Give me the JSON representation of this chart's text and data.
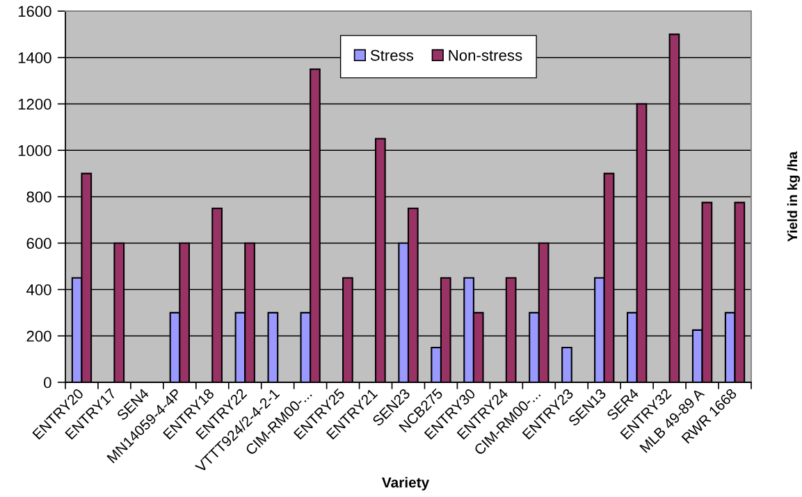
{
  "chart_data": {
    "type": "bar",
    "xlabel": "Variety",
    "ylabel": "Yield in kg /ha",
    "categories": [
      "ENTRY20",
      "ENTRY17",
      "SEN4",
      "MN14059-4-4P",
      "ENTRY18",
      "ENTRY22",
      "VTTT924/2-4-2-1",
      "CIM-RM00-...",
      "ENTRY25",
      "ENTRY21",
      "SEN23",
      "NCB275",
      "ENTRY30",
      "ENTRY24",
      "CIM-RM00-...",
      "ENTRY23",
      "SEN13",
      "SER4",
      "ENTRY32",
      "MLB 49-89 A",
      "RWR 1668"
    ],
    "series": [
      {
        "name": "Stress",
        "color": "#9999ff",
        "values": [
          450,
          null,
          null,
          300,
          null,
          300,
          300,
          300,
          null,
          null,
          600,
          150,
          450,
          null,
          300,
          150,
          450,
          300,
          null,
          225,
          300
        ]
      },
      {
        "name": "Non-stress",
        "color": "#993366",
        "values": [
          900,
          600,
          null,
          600,
          750,
          600,
          null,
          1350,
          450,
          1050,
          750,
          450,
          300,
          450,
          600,
          null,
          900,
          1200,
          1500,
          775,
          775
        ]
      }
    ],
    "ylim": [
      0,
      1600
    ],
    "yticks": [
      0,
      200,
      400,
      600,
      800,
      1000,
      1200,
      1400,
      1600
    ],
    "grid": "y",
    "legend": "top"
  }
}
